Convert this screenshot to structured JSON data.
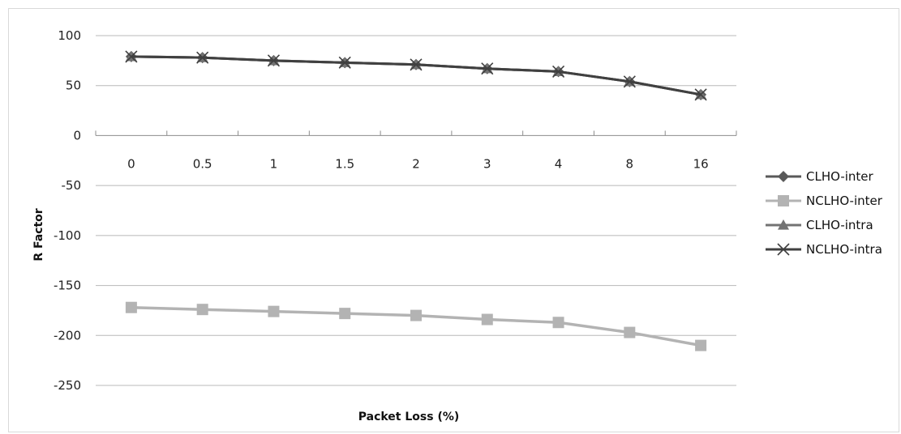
{
  "chart_data": {
    "type": "line",
    "title": "",
    "xlabel": "Packet Loss (%)",
    "ylabel": "R Factor",
    "categories": [
      "0",
      "0.5",
      "1",
      "1.5",
      "2",
      "3",
      "4",
      "8",
      "16"
    ],
    "ylim": [
      -250,
      100
    ],
    "yticks": [
      100,
      50,
      0,
      -50,
      -100,
      -150,
      -200,
      -250
    ],
    "grid": "horizontal",
    "legend": "right",
    "series": [
      {
        "name": "CLHO-inter",
        "color": "#595959",
        "marker": "diamond",
        "values": [
          79,
          78,
          75,
          73,
          71,
          67,
          64,
          54,
          41
        ]
      },
      {
        "name": "NCLHO-inter",
        "color": "#b3b3b3",
        "marker": "square",
        "values": [
          -172,
          -174,
          -176,
          -178,
          -180,
          -184,
          -187,
          -197,
          -210
        ]
      },
      {
        "name": "CLHO-intra",
        "color": "#737373",
        "marker": "triangle",
        "values": [
          79,
          78,
          75,
          73,
          71,
          67,
          64,
          54,
          41
        ]
      },
      {
        "name": "NCLHO-intra",
        "color": "#404040",
        "marker": "x",
        "values": [
          79,
          78,
          75,
          73,
          71,
          67,
          64,
          54,
          41
        ]
      }
    ]
  }
}
